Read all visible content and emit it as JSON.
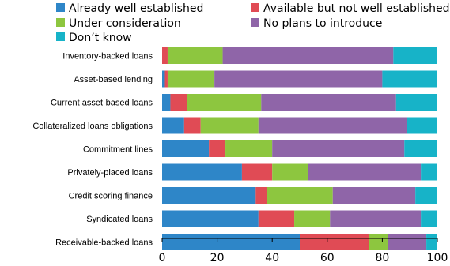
{
  "chart_data": {
    "type": "bar",
    "orientation": "horizontal",
    "stacked": true,
    "title": "",
    "xlabel": "",
    "ylabel": "",
    "xlim": [
      0,
      100
    ],
    "xticks": [
      0,
      20,
      40,
      60,
      80,
      100
    ],
    "grid": false,
    "legend_position": "top",
    "categories": [
      "Inventory-backed loans",
      "Asset-based lending",
      "Current asset-based loans",
      "Collateralized loans obligations",
      "Commitment lines",
      "Privately-placed loans",
      "Credit scoring finance",
      "Syndicated loans",
      "Receivable-backed loans"
    ],
    "series": [
      {
        "name": "Already well established",
        "color": "#2e86c8",
        "values": [
          0,
          1,
          3,
          8,
          17,
          29,
          34,
          35,
          50
        ]
      },
      {
        "name": "Available but not well established",
        "color": "#e04b55",
        "values": [
          2,
          1,
          6,
          6,
          6,
          11,
          4,
          13,
          25
        ]
      },
      {
        "name": "Under consideration",
        "color": "#8dc63f",
        "values": [
          20,
          17,
          27,
          21,
          17,
          13,
          24,
          13,
          7
        ]
      },
      {
        "name": "No plans to introduce",
        "color": "#8f65a8",
        "values": [
          62,
          61,
          49,
          54,
          48,
          41,
          30,
          33,
          14
        ]
      },
      {
        "name": "Don’t know",
        "color": "#17b3c8",
        "values": [
          16,
          20,
          15,
          11,
          12,
          6,
          8,
          6,
          4
        ]
      }
    ]
  }
}
